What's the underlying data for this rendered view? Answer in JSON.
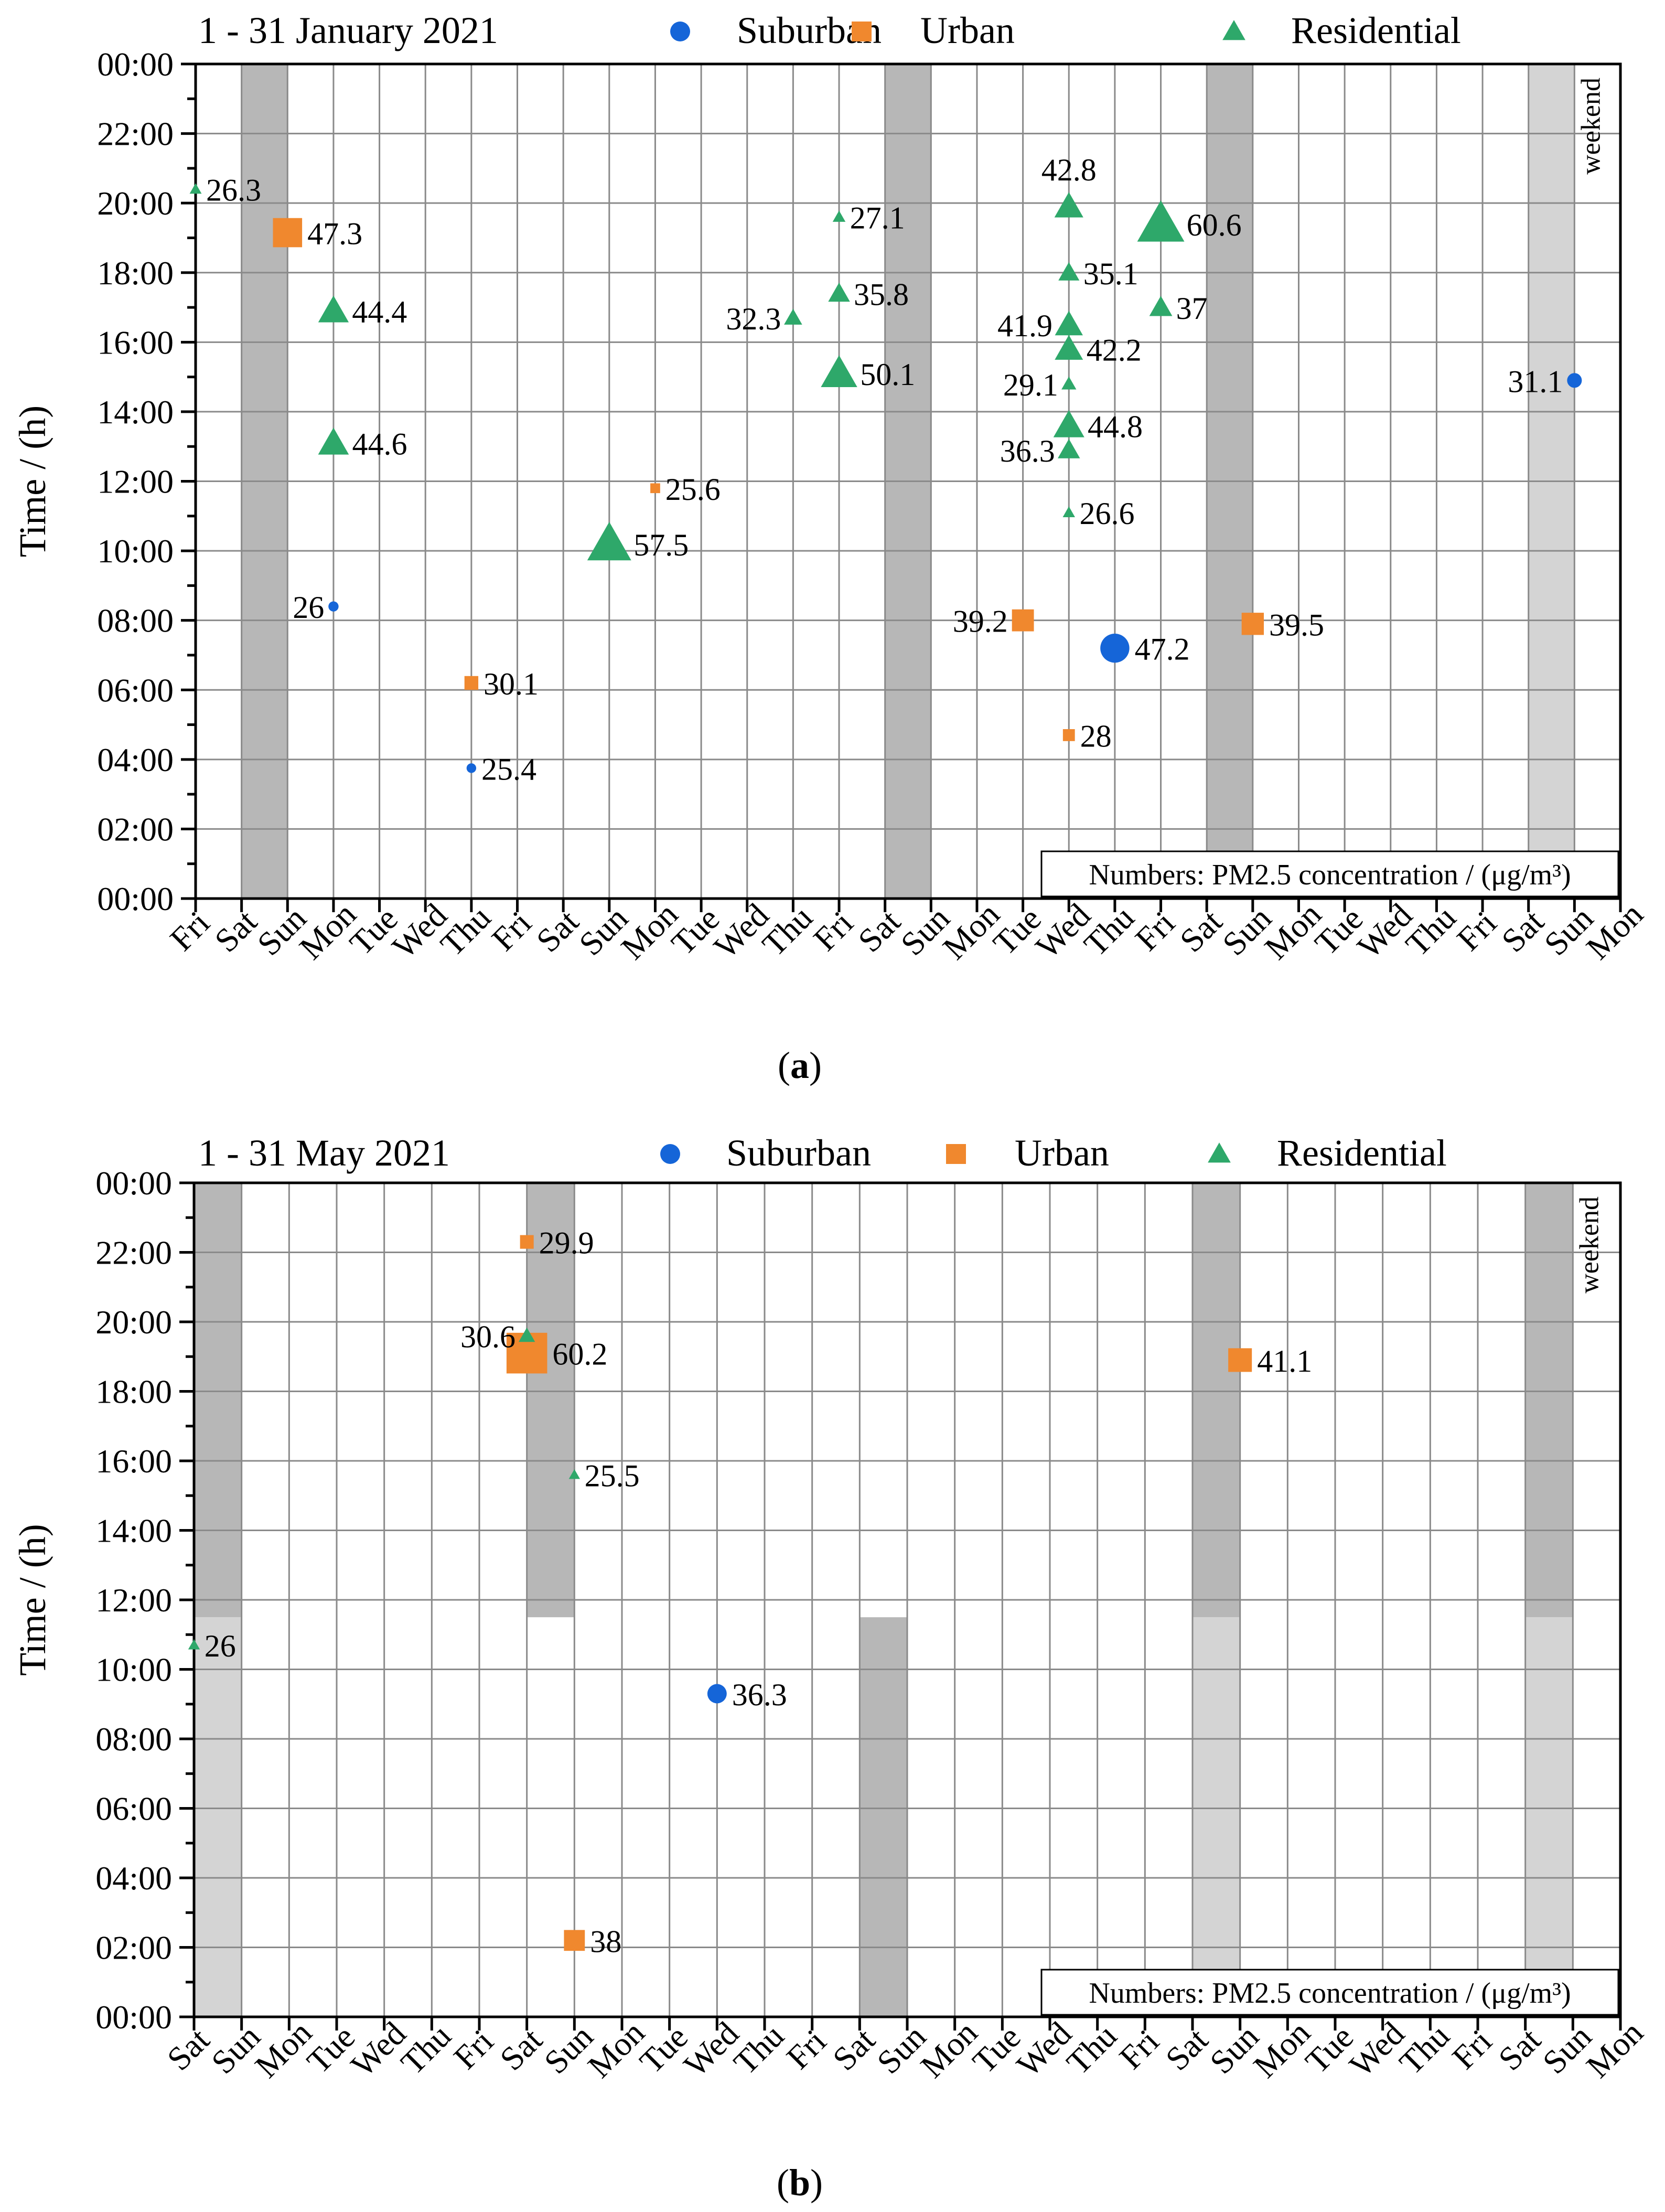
{
  "colors": {
    "suburban": "#1565d8",
    "urban": "#f0882e",
    "residential": "#2ea86a",
    "weekend_dark": "#b7b7b7",
    "weekend_light": "#d4d4d4",
    "grid": "#8a8a8a"
  },
  "legend": {
    "suburban": "Suburban",
    "urban": "Urban",
    "residential": "Residential"
  },
  "ylabel": "Time / (h)",
  "yticks": [
    "00:00",
    "02:00",
    "04:00",
    "06:00",
    "08:00",
    "10:00",
    "12:00",
    "14:00",
    "16:00",
    "18:00",
    "20:00",
    "22:00",
    "00:00"
  ],
  "note": "Numbers: PM2.5 concentration / (μg/m³)",
  "weekend_label": "weekend",
  "chart_data": [
    {
      "type": "scatter",
      "panel": "a",
      "caption_letter": "a",
      "title": "1 - 31 January 2021",
      "xlabel": "",
      "ylabel": "Time / (h)",
      "ylim": [
        0,
        24
      ],
      "categories": [
        "Fri",
        "Sat",
        "Sun",
        "Mon",
        "Tue",
        "Wed",
        "Thu",
        "Fri",
        "Sat",
        "Sun",
        "Mon",
        "Tue",
        "Wed",
        "Thu",
        "Fri",
        "Sat",
        "Sun",
        "Mon",
        "Tue",
        "Wed",
        "Thu",
        "Fri",
        "Sat",
        "Sun",
        "Mon",
        "Tue",
        "Wed",
        "Thu",
        "Fri",
        "Sat",
        "Sun",
        "Mon"
      ],
      "weekends": [
        {
          "from": 1,
          "to": 2,
          "shade": "dark",
          "h_from": 0,
          "h_to": 24
        },
        {
          "from": 15,
          "to": 16,
          "shade": "dark",
          "h_from": 0,
          "h_to": 24
        },
        {
          "from": 22,
          "to": 23,
          "shade": "dark",
          "h_from": 0,
          "h_to": 24
        },
        {
          "from": 29,
          "to": 30,
          "shade": "light",
          "h_from": 0,
          "h_to": 24
        }
      ],
      "series": [
        {
          "name": "Suburban",
          "marker": "circle",
          "points": [
            {
              "x": 3,
              "y": 8.4,
              "value": 26,
              "label": "26",
              "side": "left"
            },
            {
              "x": 6,
              "y": 3.75,
              "value": 25.4,
              "label": "25.4",
              "side": "right"
            },
            {
              "x": 20,
              "y": 7.2,
              "value": 47.2,
              "label": "47.2",
              "side": "right"
            },
            {
              "x": 30,
              "y": 14.9,
              "value": 31.1,
              "label": "31.1",
              "side": "left"
            }
          ]
        },
        {
          "name": "Urban",
          "marker": "square",
          "points": [
            {
              "x": 2,
              "y": 19.15,
              "value": 47.3,
              "label": "47.3",
              "side": "right"
            },
            {
              "x": 6,
              "y": 6.2,
              "value": 30.1,
              "label": "30.1",
              "side": "right"
            },
            {
              "x": 10,
              "y": 11.8,
              "value": 25.6,
              "label": "25.6",
              "side": "right"
            },
            {
              "x": 18,
              "y": 8.0,
              "value": 39.2,
              "label": "39.2",
              "side": "left"
            },
            {
              "x": 19,
              "y": 4.7,
              "value": 28,
              "label": "28",
              "side": "right"
            },
            {
              "x": 23,
              "y": 7.9,
              "value": 39.5,
              "label": "39.5",
              "side": "right"
            }
          ]
        },
        {
          "name": "Residential",
          "marker": "triangle",
          "points": [
            {
              "x": 0,
              "y": 20.4,
              "value": 26.3,
              "label": "26.3",
              "side": "right"
            },
            {
              "x": 3,
              "y": 16.9,
              "value": 44.4,
              "label": "44.4",
              "side": "right"
            },
            {
              "x": 3,
              "y": 13.1,
              "value": 44.6,
              "label": "44.6",
              "side": "right"
            },
            {
              "x": 9,
              "y": 10.2,
              "value": 57.5,
              "label": "57.5",
              "side": "right"
            },
            {
              "x": 13,
              "y": 16.7,
              "value": 32.3,
              "label": "32.3",
              "side": "left"
            },
            {
              "x": 14,
              "y": 19.6,
              "value": 27.1,
              "label": "27.1",
              "side": "right"
            },
            {
              "x": 14,
              "y": 17.4,
              "value": 35.8,
              "label": "35.8",
              "side": "right"
            },
            {
              "x": 14,
              "y": 15.1,
              "value": 50.1,
              "label": "50.1",
              "side": "right"
            },
            {
              "x": 19,
              "y": 19.9,
              "value": 42.8,
              "label": "42.8",
              "side": "top"
            },
            {
              "x": 19,
              "y": 18.0,
              "value": 35.1,
              "label": "35.1",
              "side": "right"
            },
            {
              "x": 19,
              "y": 16.5,
              "value": 41.9,
              "label": "41.9",
              "side": "left"
            },
            {
              "x": 19,
              "y": 15.8,
              "value": 42.2,
              "label": "42.2",
              "side": "right"
            },
            {
              "x": 19,
              "y": 14.8,
              "value": 29.1,
              "label": "29.1",
              "side": "left"
            },
            {
              "x": 19,
              "y": 13.6,
              "value": 44.8,
              "label": "44.8",
              "side": "right"
            },
            {
              "x": 19,
              "y": 12.9,
              "value": 36.3,
              "label": "36.3",
              "side": "left"
            },
            {
              "x": 19,
              "y": 11.1,
              "value": 26.6,
              "label": "26.6",
              "side": "right"
            },
            {
              "x": 21,
              "y": 19.4,
              "value": 60.6,
              "label": "60.6",
              "side": "right"
            },
            {
              "x": 21,
              "y": 17.0,
              "value": 37,
              "label": "37",
              "side": "right"
            }
          ]
        }
      ]
    },
    {
      "type": "scatter",
      "panel": "b",
      "caption_letter": "b",
      "title": "1 - 31 May 2021",
      "xlabel": "",
      "ylabel": "Time / (h)",
      "ylim": [
        0,
        24
      ],
      "categories": [
        "Sat",
        "Sun",
        "Mon",
        "Tue",
        "Wed",
        "Thu",
        "Fri",
        "Sat",
        "Sun",
        "Mon",
        "Tue",
        "Wed",
        "Thu",
        "Fri",
        "Sat",
        "Sun",
        "Mon",
        "Tue",
        "Wed",
        "Thu",
        "Fri",
        "Sat",
        "Sun",
        "Mon",
        "Tue",
        "Wed",
        "Thu",
        "Fri",
        "Sat",
        "Sun",
        "Mon"
      ],
      "weekends": [
        {
          "from": 0,
          "to": 1,
          "shade": "dark",
          "h_from": 11.5,
          "h_to": 24
        },
        {
          "from": 0,
          "to": 1,
          "shade": "light",
          "h_from": 0,
          "h_to": 11.5
        },
        {
          "from": 7,
          "to": 8,
          "shade": "dark",
          "h_from": 11.5,
          "h_to": 24
        },
        {
          "from": 14,
          "to": 15,
          "shade": "dark",
          "h_from": 0,
          "h_to": 11.5
        },
        {
          "from": 21,
          "to": 22,
          "shade": "dark",
          "h_from": 11.5,
          "h_to": 24
        },
        {
          "from": 21,
          "to": 22,
          "shade": "light",
          "h_from": 0,
          "h_to": 11.5
        },
        {
          "from": 28,
          "to": 29,
          "shade": "dark",
          "h_from": 11.5,
          "h_to": 24
        },
        {
          "from": 28,
          "to": 29,
          "shade": "light",
          "h_from": 0,
          "h_to": 11.5
        }
      ],
      "series": [
        {
          "name": "Suburban",
          "marker": "circle",
          "points": [
            {
              "x": 11,
              "y": 9.3,
              "value": 36.3,
              "label": "36.3",
              "side": "right"
            }
          ]
        },
        {
          "name": "Urban",
          "marker": "square",
          "points": [
            {
              "x": 7,
              "y": 22.3,
              "value": 29.9,
              "label": "29.9",
              "side": "right"
            },
            {
              "x": 7,
              "y": 19.1,
              "value": 60.2,
              "label": "60.2",
              "side": "right"
            },
            {
              "x": 8,
              "y": 2.2,
              "value": 38,
              "label": "38",
              "side": "right"
            },
            {
              "x": 22,
              "y": 18.9,
              "value": 41.1,
              "label": "41.1",
              "side": "right"
            }
          ]
        },
        {
          "name": "Residential",
          "marker": "triangle",
          "points": [
            {
              "x": 0,
              "y": 10.7,
              "value": 26,
              "label": "26",
              "side": "right"
            },
            {
              "x": 7,
              "y": 19.6,
              "value": 30.6,
              "label": "30.6",
              "side": "left"
            },
            {
              "x": 8,
              "y": 15.6,
              "value": 25.5,
              "label": "25.5",
              "side": "right"
            }
          ]
        }
      ]
    }
  ]
}
